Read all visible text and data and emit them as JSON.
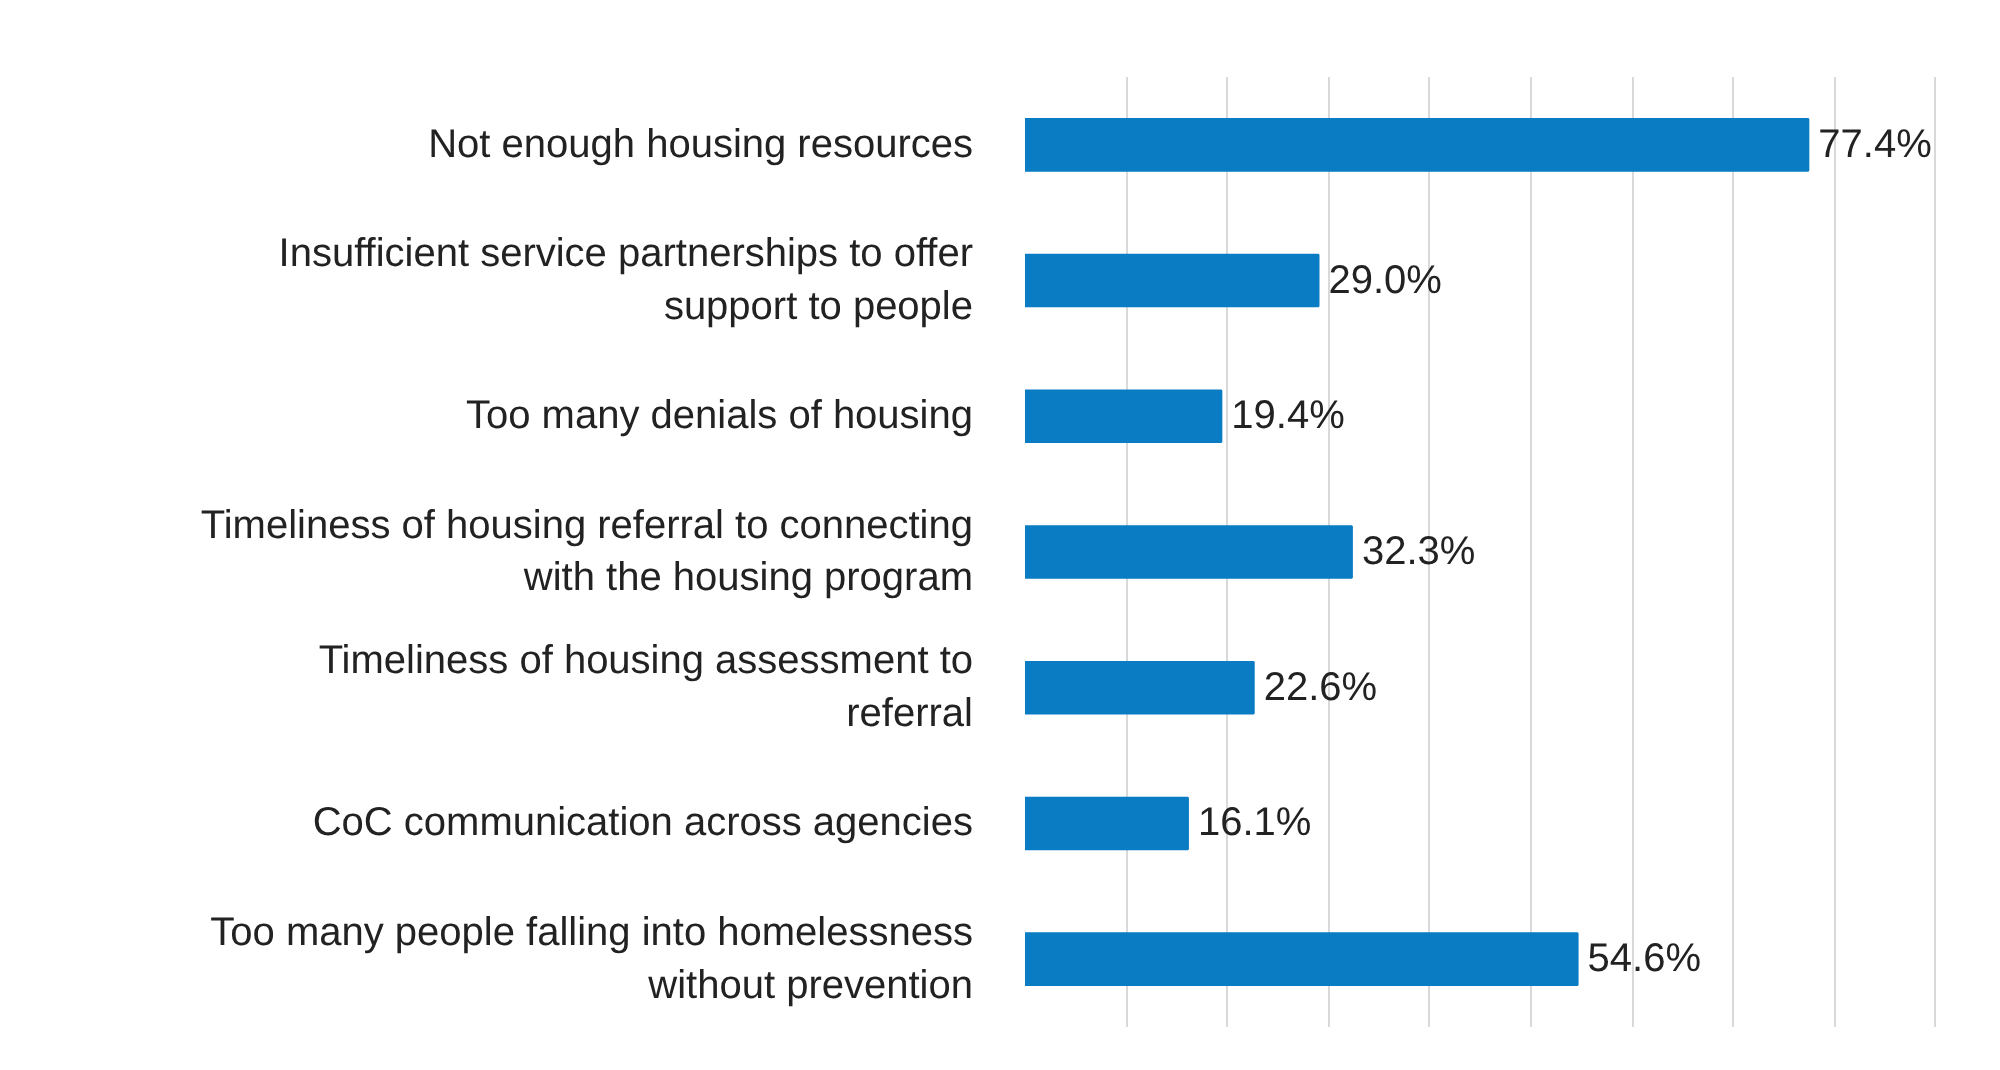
{
  "chart_data": {
    "type": "bar",
    "orientation": "horizontal",
    "categories": [
      "Not enough housing resources",
      "Insufficient service partnerships to offer\nsupport to people",
      "Too many denials of housing",
      "Timeliness of housing referral to connecting\nwith the housing program",
      "Timeliness of housing assessment to\nreferral",
      "CoC communication across agencies",
      "Too many people falling into homelessness\nwithout prevention"
    ],
    "values": [
      77.4,
      29.0,
      19.4,
      32.3,
      22.6,
      16.1,
      54.6
    ],
    "value_labels": [
      "77.4%",
      "29.0%",
      "19.4%",
      "32.3%",
      "22.6%",
      "16.1%",
      "54.6%"
    ],
    "color": "#0a7cc4",
    "grid": "x",
    "tick_labels": "y"
  }
}
